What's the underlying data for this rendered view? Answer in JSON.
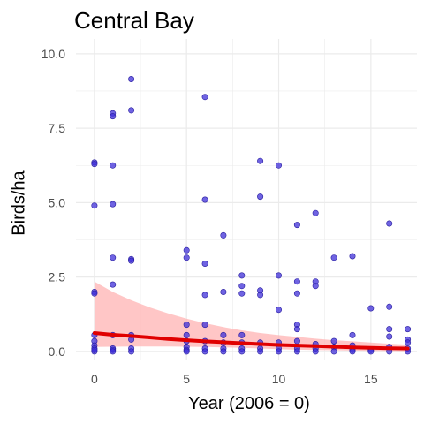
{
  "chart_data": {
    "type": "scatter",
    "title": "Central Bay",
    "xlabel": "Year (2006 = 0)",
    "ylabel": "Birds/ha",
    "xlim": [
      -1,
      17.5
    ],
    "ylim": [
      -0.3,
      10.5
    ],
    "x_ticks": [
      0,
      5,
      10,
      15
    ],
    "y_ticks": [
      0.0,
      2.5,
      5.0,
      7.5,
      10.0
    ],
    "x_tick_labels": [
      "0",
      "5",
      "10",
      "15"
    ],
    "y_tick_labels": [
      "0.0",
      "2.5",
      "5.0",
      "7.5",
      "10.0"
    ],
    "grid": true,
    "colors": {
      "points": "#3f2fd8",
      "fit_line": "#e00000",
      "confidence_band": "#ffb3b3",
      "grid": "#ebebeb"
    },
    "points": [
      {
        "x": 0,
        "y": 6.35
      },
      {
        "x": 0,
        "y": 6.3
      },
      {
        "x": 0,
        "y": 4.9
      },
      {
        "x": 0,
        "y": 2.0
      },
      {
        "x": 0,
        "y": 1.95
      },
      {
        "x": 0,
        "y": 0.55
      },
      {
        "x": 0,
        "y": 0.35
      },
      {
        "x": 0,
        "y": 0.2
      },
      {
        "x": 0,
        "y": 0.1
      },
      {
        "x": 0,
        "y": 0.0
      },
      {
        "x": 0,
        "y": 0.05
      },
      {
        "x": 1,
        "y": 8.0
      },
      {
        "x": 1,
        "y": 7.9
      },
      {
        "x": 1,
        "y": 6.25
      },
      {
        "x": 1,
        "y": 4.95
      },
      {
        "x": 1,
        "y": 3.15
      },
      {
        "x": 1,
        "y": 2.25
      },
      {
        "x": 1,
        "y": 0.55
      },
      {
        "x": 1,
        "y": 0.1
      },
      {
        "x": 1,
        "y": 0.05
      },
      {
        "x": 1,
        "y": 0.0
      },
      {
        "x": 2,
        "y": 9.15
      },
      {
        "x": 2,
        "y": 8.1
      },
      {
        "x": 2,
        "y": 3.1
      },
      {
        "x": 2,
        "y": 3.05
      },
      {
        "x": 2,
        "y": 0.55
      },
      {
        "x": 2,
        "y": 0.4
      },
      {
        "x": 2,
        "y": 0.1
      },
      {
        "x": 2,
        "y": 0.0
      },
      {
        "x": 5,
        "y": 3.4
      },
      {
        "x": 5,
        "y": 3.15
      },
      {
        "x": 5,
        "y": 0.9
      },
      {
        "x": 5,
        "y": 0.55
      },
      {
        "x": 5,
        "y": 0.35
      },
      {
        "x": 5,
        "y": 0.15
      },
      {
        "x": 5,
        "y": 0.05
      },
      {
        "x": 5,
        "y": 0.0
      },
      {
        "x": 6,
        "y": 8.55
      },
      {
        "x": 6,
        "y": 5.1
      },
      {
        "x": 6,
        "y": 2.95
      },
      {
        "x": 6,
        "y": 1.9
      },
      {
        "x": 6,
        "y": 0.9
      },
      {
        "x": 6,
        "y": 0.35
      },
      {
        "x": 6,
        "y": 0.1
      },
      {
        "x": 6,
        "y": 0.0
      },
      {
        "x": 7,
        "y": 3.9
      },
      {
        "x": 7,
        "y": 2.0
      },
      {
        "x": 7,
        "y": 0.55
      },
      {
        "x": 7,
        "y": 0.3
      },
      {
        "x": 7,
        "y": 0.1
      },
      {
        "x": 7,
        "y": 0.0
      },
      {
        "x": 8,
        "y": 2.55
      },
      {
        "x": 8,
        "y": 2.2
      },
      {
        "x": 8,
        "y": 1.95
      },
      {
        "x": 8,
        "y": 0.55
      },
      {
        "x": 8,
        "y": 0.3
      },
      {
        "x": 8,
        "y": 0.1
      },
      {
        "x": 8,
        "y": 0.0
      },
      {
        "x": 9,
        "y": 6.4
      },
      {
        "x": 9,
        "y": 5.2
      },
      {
        "x": 9,
        "y": 2.05
      },
      {
        "x": 9,
        "y": 1.9
      },
      {
        "x": 9,
        "y": 0.3
      },
      {
        "x": 9,
        "y": 0.1
      },
      {
        "x": 9,
        "y": 0.0
      },
      {
        "x": 10,
        "y": 6.25
      },
      {
        "x": 10,
        "y": 2.55
      },
      {
        "x": 10,
        "y": 1.4
      },
      {
        "x": 10,
        "y": 0.3
      },
      {
        "x": 10,
        "y": 0.1
      },
      {
        "x": 10,
        "y": 0.0
      },
      {
        "x": 11,
        "y": 4.25
      },
      {
        "x": 11,
        "y": 2.35
      },
      {
        "x": 11,
        "y": 1.95
      },
      {
        "x": 11,
        "y": 0.9
      },
      {
        "x": 11,
        "y": 0.75
      },
      {
        "x": 11,
        "y": 0.35
      },
      {
        "x": 11,
        "y": 0.1
      },
      {
        "x": 11,
        "y": 0.0
      },
      {
        "x": 12,
        "y": 4.65
      },
      {
        "x": 12,
        "y": 2.35
      },
      {
        "x": 12,
        "y": 2.2
      },
      {
        "x": 12,
        "y": 0.25
      },
      {
        "x": 12,
        "y": 0.1
      },
      {
        "x": 12,
        "y": 0.0
      },
      {
        "x": 13,
        "y": 3.15
      },
      {
        "x": 13,
        "y": 0.35
      },
      {
        "x": 13,
        "y": 0.15
      },
      {
        "x": 13,
        "y": 0.0
      },
      {
        "x": 14,
        "y": 3.2
      },
      {
        "x": 14,
        "y": 0.55
      },
      {
        "x": 14,
        "y": 0.2
      },
      {
        "x": 14,
        "y": 0.05
      },
      {
        "x": 14,
        "y": 0.0
      },
      {
        "x": 15,
        "y": 1.45
      },
      {
        "x": 15,
        "y": 0.05
      },
      {
        "x": 15,
        "y": 0.0
      },
      {
        "x": 16,
        "y": 4.3
      },
      {
        "x": 16,
        "y": 1.5
      },
      {
        "x": 16,
        "y": 0.75
      },
      {
        "x": 16,
        "y": 0.5
      },
      {
        "x": 16,
        "y": 0.15
      },
      {
        "x": 16,
        "y": 0.0
      },
      {
        "x": 17,
        "y": 0.75
      },
      {
        "x": 17,
        "y": 0.4
      },
      {
        "x": 17,
        "y": 0.3
      },
      {
        "x": 17,
        "y": 0.1
      },
      {
        "x": 17,
        "y": 0.0
      }
    ],
    "fit_line": [
      {
        "x": 0,
        "y": 0.62
      },
      {
        "x": 1,
        "y": 0.56
      },
      {
        "x": 2,
        "y": 0.52
      },
      {
        "x": 3,
        "y": 0.47
      },
      {
        "x": 4,
        "y": 0.42
      },
      {
        "x": 5,
        "y": 0.38
      },
      {
        "x": 6,
        "y": 0.34
      },
      {
        "x": 7,
        "y": 0.31
      },
      {
        "x": 8,
        "y": 0.28
      },
      {
        "x": 9,
        "y": 0.25
      },
      {
        "x": 10,
        "y": 0.22
      },
      {
        "x": 11,
        "y": 0.2
      },
      {
        "x": 12,
        "y": 0.18
      },
      {
        "x": 13,
        "y": 0.16
      },
      {
        "x": 14,
        "y": 0.14
      },
      {
        "x": 15,
        "y": 0.12
      },
      {
        "x": 16,
        "y": 0.11
      },
      {
        "x": 17,
        "y": 0.1
      }
    ],
    "confidence_band": [
      {
        "x": 0,
        "lower": 0.15,
        "upper": 2.35
      },
      {
        "x": 1,
        "lower": 0.16,
        "upper": 2.0
      },
      {
        "x": 2,
        "lower": 0.17,
        "upper": 1.72
      },
      {
        "x": 3,
        "lower": 0.17,
        "upper": 1.48
      },
      {
        "x": 4,
        "lower": 0.17,
        "upper": 1.28
      },
      {
        "x": 5,
        "lower": 0.16,
        "upper": 1.1
      },
      {
        "x": 6,
        "lower": 0.15,
        "upper": 0.95
      },
      {
        "x": 7,
        "lower": 0.14,
        "upper": 0.82
      },
      {
        "x": 8,
        "lower": 0.12,
        "upper": 0.71
      },
      {
        "x": 9,
        "lower": 0.1,
        "upper": 0.62
      },
      {
        "x": 10,
        "lower": 0.08,
        "upper": 0.55
      },
      {
        "x": 11,
        "lower": 0.06,
        "upper": 0.49
      },
      {
        "x": 12,
        "lower": 0.05,
        "upper": 0.43
      },
      {
        "x": 13,
        "lower": 0.04,
        "upper": 0.38
      },
      {
        "x": 14,
        "lower": 0.03,
        "upper": 0.34
      },
      {
        "x": 15,
        "lower": 0.02,
        "upper": 0.3
      },
      {
        "x": 16,
        "lower": 0.02,
        "upper": 0.26
      },
      {
        "x": 17,
        "lower": 0.01,
        "upper": 0.23
      }
    ]
  }
}
